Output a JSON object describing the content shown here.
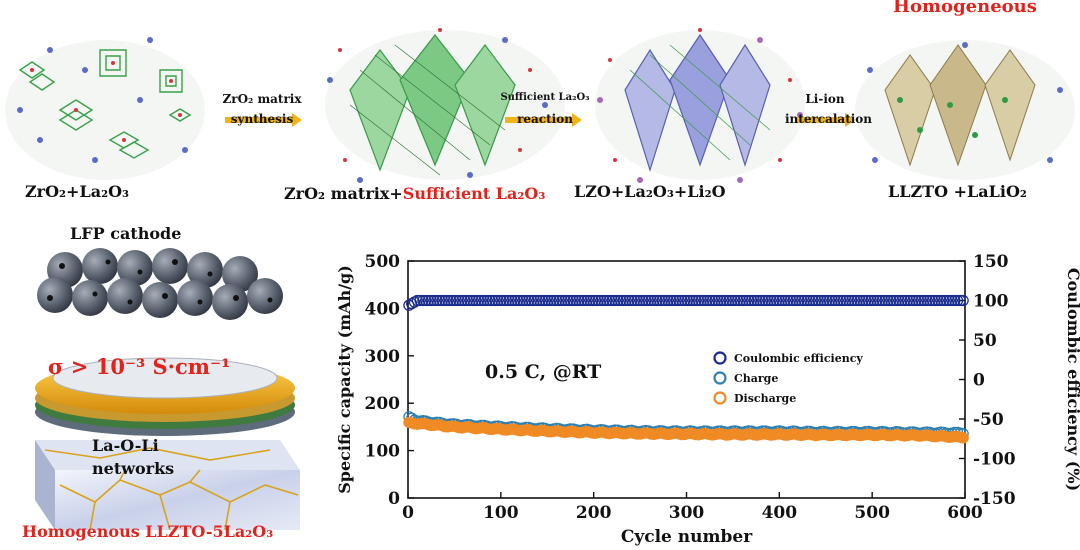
{
  "top": {
    "homogeneous": "Homogeneous",
    "stage_labels": {
      "s1": "ZrO₂+La₂O₃",
      "s2_prefix": "ZrO₂ matrix+",
      "s2_red": "Sufficient La₂O₃",
      "s3": "LZO+La₂O₃+Li₂O",
      "s4": "LLZTO +LaLiO₂"
    },
    "arrows": {
      "a1_top": "ZrO₂ matrix",
      "a1_bottom": "synthesis",
      "a2_top": "Sufficient La₂O₃",
      "a2_bottom": "reaction",
      "a3_top": "Li-ion",
      "a3_bottom": "intercalation"
    }
  },
  "battery": {
    "cathode_label": "LFP cathode",
    "conductivity": "σ > 10⁻³ S·cm⁻¹",
    "network_line1": "La-O-Li",
    "network_line2": "networks",
    "bottom_label": "Homogenous LLZTO-5La₂O₃"
  },
  "chart_data": {
    "type": "scatter",
    "annotation": "0.5 C, @RT",
    "xlabel": "Cycle number",
    "ylabel": "Specific capacity (mAh/g)",
    "y2label": "Coulombic efficiency (%)",
    "xlim": [
      0,
      600
    ],
    "ylim": [
      0,
      500
    ],
    "y2lim": [
      -150,
      150
    ],
    "xticks": [
      0,
      100,
      200,
      300,
      400,
      500,
      600
    ],
    "yticks": [
      0,
      100,
      200,
      300,
      400,
      500
    ],
    "y2ticks": [
      -150,
      -100,
      -50,
      0,
      50,
      100,
      150
    ],
    "legend_position": "center-right",
    "series": [
      {
        "name": "Coulombic efficiency",
        "axis": "right",
        "color": "#1a2b8c",
        "x": [
          1,
          10,
          50,
          100,
          200,
          300,
          400,
          500,
          600
        ],
        "values": [
          94,
          100,
          100,
          100,
          100,
          100,
          100,
          100,
          100
        ]
      },
      {
        "name": "Charge",
        "axis": "left",
        "color": "#2f7fb0",
        "x": [
          1,
          10,
          50,
          100,
          150,
          200,
          250,
          300,
          350,
          400,
          450,
          500,
          550,
          600
        ],
        "values": [
          170,
          163,
          155,
          150,
          146,
          143,
          141,
          140,
          140,
          140,
          139,
          139,
          138,
          137
        ]
      },
      {
        "name": "Discharge",
        "axis": "left",
        "color": "#f08a24",
        "x": [
          1,
          10,
          50,
          100,
          150,
          200,
          250,
          300,
          350,
          400,
          450,
          500,
          550,
          600
        ],
        "values": [
          158,
          157,
          150,
          145,
          141,
          138,
          136,
          135,
          134,
          134,
          133,
          133,
          132,
          128
        ]
      }
    ]
  }
}
